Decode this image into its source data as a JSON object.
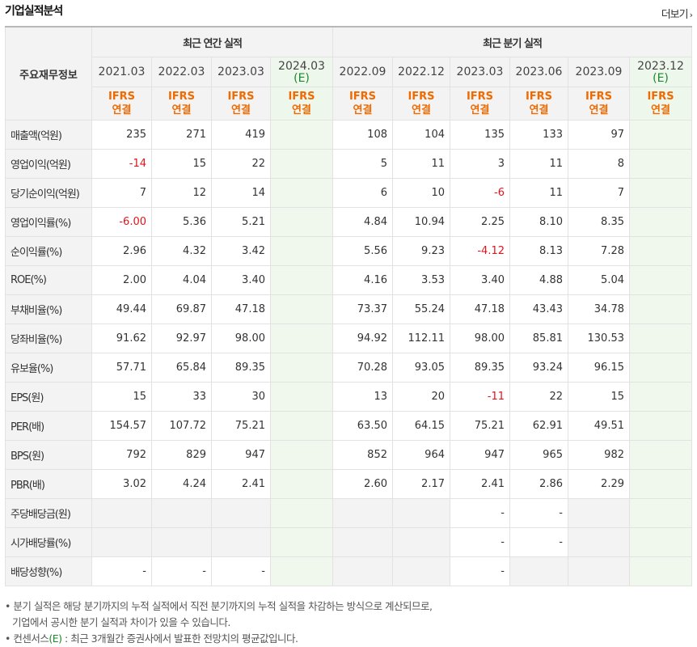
{
  "header": {
    "title": "기업실적분석",
    "more_label": "더보기",
    "more_icon": "chevron-right-icon"
  },
  "table": {
    "row_header": "주요재무정보",
    "group_annual": "최근 연간 실적",
    "group_quarter": "최근 분기 실적",
    "periods": [
      {
        "date": "2021.03",
        "est": ""
      },
      {
        "date": "2022.03",
        "est": ""
      },
      {
        "date": "2023.03",
        "est": ""
      },
      {
        "date": "2024.03",
        "est": "(E)"
      },
      {
        "date": "2022.09",
        "est": ""
      },
      {
        "date": "2022.12",
        "est": ""
      },
      {
        "date": "2023.03",
        "est": ""
      },
      {
        "date": "2023.06",
        "est": ""
      },
      {
        "date": "2023.09",
        "est": ""
      },
      {
        "date": "2023.12",
        "est": "(E)"
      }
    ],
    "ifrs_top": "IFRS",
    "ifrs_bottom": "연결",
    "rows": [
      {
        "label": "매출액(억원)",
        "values": [
          "235",
          "271",
          "419",
          "",
          "108",
          "104",
          "135",
          "133",
          "97",
          ""
        ]
      },
      {
        "label": "영업이익(억원)",
        "values": [
          "-14",
          "15",
          "22",
          "",
          "5",
          "11",
          "3",
          "11",
          "8",
          ""
        ]
      },
      {
        "label": "당기순이익(억원)",
        "values": [
          "7",
          "12",
          "14",
          "",
          "6",
          "10",
          "-6",
          "11",
          "7",
          ""
        ]
      },
      {
        "label": "영업이익률(%)",
        "values": [
          "-6.00",
          "5.36",
          "5.21",
          "",
          "4.84",
          "10.94",
          "2.25",
          "8.10",
          "8.35",
          ""
        ]
      },
      {
        "label": "순이익률(%)",
        "values": [
          "2.96",
          "4.32",
          "3.42",
          "",
          "5.56",
          "9.23",
          "-4.12",
          "8.13",
          "7.28",
          ""
        ]
      },
      {
        "label": "ROE(%)",
        "values": [
          "2.00",
          "4.04",
          "3.40",
          "",
          "4.16",
          "3.53",
          "3.40",
          "4.88",
          "5.04",
          ""
        ]
      },
      {
        "label": "부채비율(%)",
        "values": [
          "49.44",
          "69.87",
          "47.18",
          "",
          "73.37",
          "55.24",
          "47.18",
          "43.43",
          "34.78",
          ""
        ]
      },
      {
        "label": "당좌비율(%)",
        "values": [
          "91.62",
          "92.97",
          "98.00",
          "",
          "94.92",
          "112.11",
          "98.00",
          "85.81",
          "130.53",
          ""
        ]
      },
      {
        "label": "유보율(%)",
        "values": [
          "57.71",
          "65.84",
          "89.35",
          "",
          "70.28",
          "93.05",
          "89.35",
          "93.24",
          "96.15",
          ""
        ]
      },
      {
        "label": "EPS(원)",
        "values": [
          "15",
          "33",
          "30",
          "",
          "13",
          "20",
          "-11",
          "22",
          "15",
          ""
        ]
      },
      {
        "label": "PER(배)",
        "values": [
          "154.57",
          "107.72",
          "75.21",
          "",
          "63.50",
          "64.15",
          "75.21",
          "62.91",
          "49.51",
          ""
        ]
      },
      {
        "label": "BPS(원)",
        "values": [
          "792",
          "829",
          "947",
          "",
          "852",
          "964",
          "947",
          "965",
          "982",
          ""
        ]
      },
      {
        "label": "PBR(배)",
        "values": [
          "3.02",
          "4.24",
          "2.41",
          "",
          "2.60",
          "2.17",
          "2.41",
          "2.86",
          "2.29",
          ""
        ]
      },
      {
        "label": "주당배당금(원)",
        "values": [
          "",
          "",
          "",
          "",
          "",
          "",
          "-",
          "-",
          "",
          ""
        ]
      },
      {
        "label": "시가배당률(%)",
        "values": [
          "",
          "",
          "",
          "",
          "",
          "",
          "-",
          "-",
          "",
          ""
        ]
      },
      {
        "label": "배당성향(%)",
        "values": [
          "-",
          "-",
          "-",
          "",
          "",
          "",
          "-",
          "",
          "",
          ""
        ]
      }
    ]
  },
  "notes": {
    "line1": "분기 실적은 해당 분기까지의 누적 실적에서 직전 분기까지의 누적 실적을 차감하는 방식으로 계산되므로,",
    "line2": "기업에서 공시한 분기 실적과 차이가 있을 수 있습니다.",
    "line3_a": "컨센서스",
    "line3_e": "(E)",
    "line3_b": " : 최근 3개월간 증권사에서 발표한 전망치의 평균값입니다."
  },
  "colors": {
    "negative": "#e0141e",
    "ifrs": "#f06a00",
    "estimate": "#1a8a2a"
  }
}
